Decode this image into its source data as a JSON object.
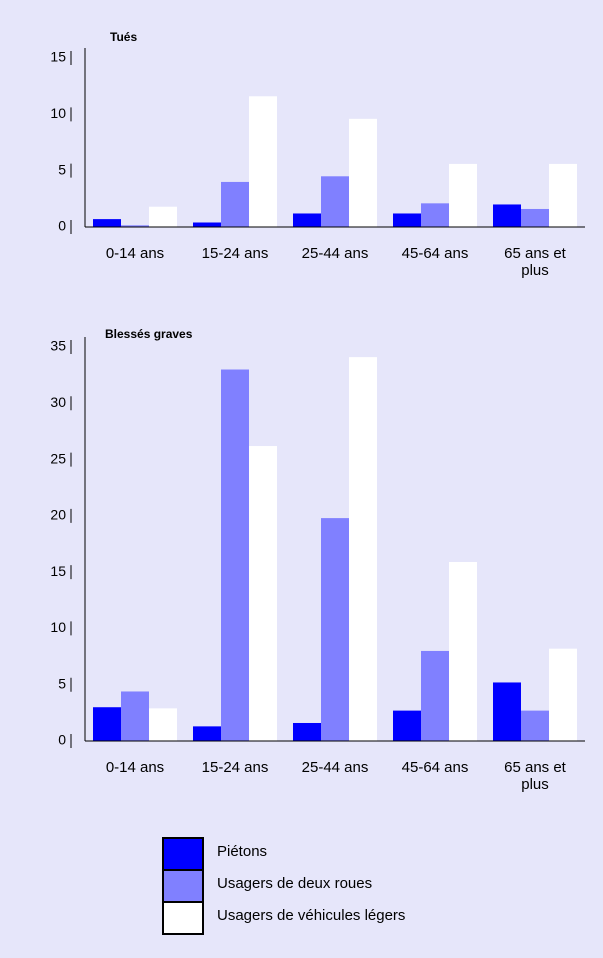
{
  "chart_data": [
    {
      "type": "bar",
      "title": "Tués",
      "categories": [
        "0-14 ans",
        "15-24 ans",
        "25-44 ans",
        "45-64 ans",
        "65 ans et plus"
      ],
      "series": [
        {
          "name": "Piétons",
          "color": "#0000ff",
          "values": [
            0.7,
            0.4,
            1.2,
            1.2,
            2.0
          ]
        },
        {
          "name": "Usagers de deux roues",
          "color": "#8080ff",
          "values": [
            0.15,
            4.0,
            4.5,
            2.1,
            1.6
          ]
        },
        {
          "name": "Usagers de véhicules légers",
          "color": "#ffffff",
          "values": [
            1.8,
            11.6,
            9.6,
            5.6,
            5.6
          ]
        }
      ],
      "ylim": [
        0,
        15
      ],
      "yticks": [
        0,
        5,
        10,
        15
      ]
    },
    {
      "type": "bar",
      "title": "Blessés graves",
      "categories": [
        "0-14 ans",
        "15-24 ans",
        "25-44 ans",
        "45-64 ans",
        "65 ans et plus"
      ],
      "series": [
        {
          "color": "#0000ff",
          "values": [
            3.0,
            1.3,
            1.6,
            2.7,
            5.2
          ]
        },
        {
          "color": "#8080ff",
          "values": [
            4.4,
            33.0,
            19.8,
            8.0,
            2.7
          ]
        },
        {
          "color": "#ffffff",
          "values": [
            2.9,
            26.2,
            34.1,
            15.9,
            8.2
          ]
        }
      ],
      "ylim": [
        0,
        35
      ],
      "yticks": [
        0,
        5,
        10,
        15,
        20,
        25,
        30,
        35
      ]
    }
  ]
}
